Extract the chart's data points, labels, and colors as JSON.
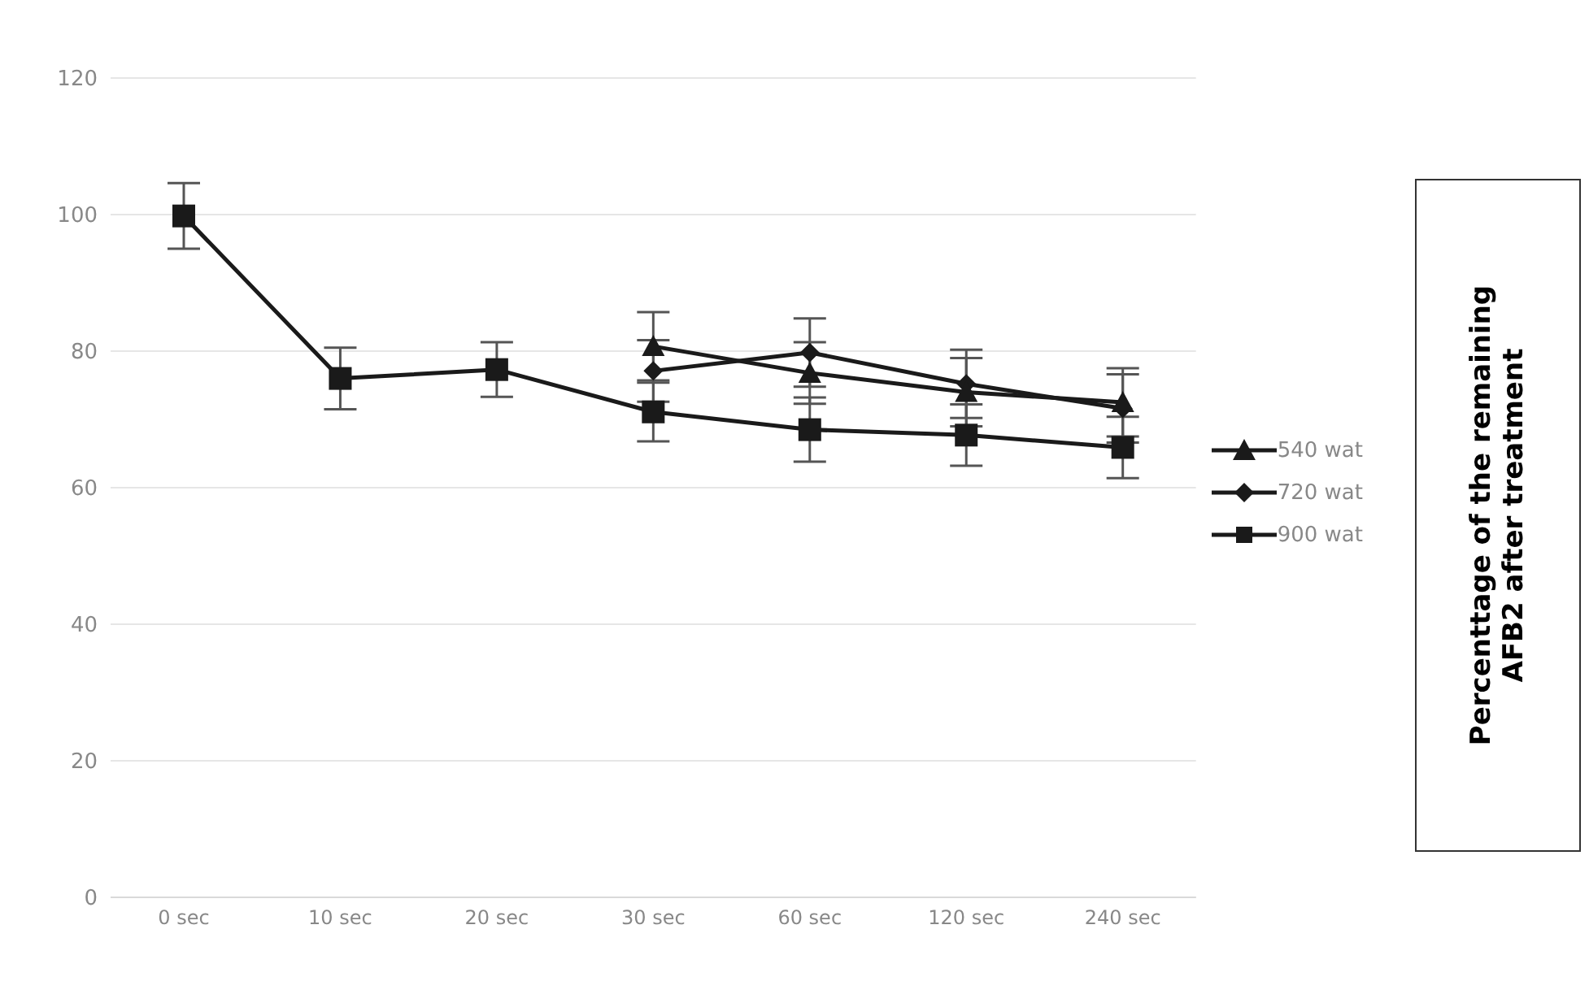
{
  "chart_data": {
    "type": "line",
    "annotations": [
      "Percenttage of  the remaining AFB2 after treatment"
    ],
    "categories": [
      "0 sec",
      "10 sec",
      "20 sec",
      "30 sec",
      "60 sec",
      "120 sec",
      "240 sec"
    ],
    "ylim": [
      0,
      120
    ],
    "yticks": [
      0,
      20,
      40,
      60,
      80,
      100,
      120
    ],
    "grid": "y",
    "legend": "right",
    "series": [
      {
        "name": "540 wat",
        "color": "#1a1a1a",
        "marker": "triangle",
        "values": [
          null,
          null,
          null,
          80.7,
          76.8,
          74,
          72.5
        ],
        "errors": [
          null,
          null,
          null,
          5,
          4.5,
          5,
          5
        ]
      },
      {
        "name": "720 wat",
        "color": "#1a1a1a",
        "marker": "diamond",
        "values": [
          null,
          null,
          null,
          77.1,
          79.8,
          75.2,
          71.6
        ],
        "errors": [
          null,
          null,
          null,
          4.5,
          5,
          5,
          5
        ]
      },
      {
        "name": "900 wat",
        "color": "#1a1a1a",
        "marker": "square",
        "values": [
          99.8,
          76,
          77.3,
          71.1,
          68.5,
          67.7,
          65.9
        ],
        "errors": [
          4.8,
          4.5,
          4,
          4.3,
          4.7,
          4.5,
          4.5
        ]
      }
    ]
  }
}
